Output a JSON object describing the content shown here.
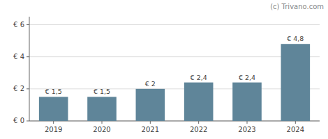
{
  "chart_data": {
    "type": "bar",
    "categories": [
      "2019",
      "2020",
      "2021",
      "2022",
      "2023",
      "2024"
    ],
    "values": [
      1.5,
      1.5,
      2.0,
      2.4,
      2.4,
      4.8
    ],
    "value_labels": [
      "€ 1,5",
      "€ 1,5",
      "€ 2",
      "€ 2,4",
      "€ 2,4",
      "€ 4,8"
    ],
    "data_labels": true,
    "color": "#5f8599",
    "ylim": [
      0,
      6.5
    ],
    "yticks": [
      {
        "value": 0,
        "label": "€ 0"
      },
      {
        "value": 2,
        "label": "€ 2"
      },
      {
        "value": 4,
        "label": "€ 4"
      },
      {
        "value": 6,
        "label": "€ 6"
      }
    ],
    "grid": true,
    "annotations": [
      "(c) Trivano.com"
    ]
  }
}
